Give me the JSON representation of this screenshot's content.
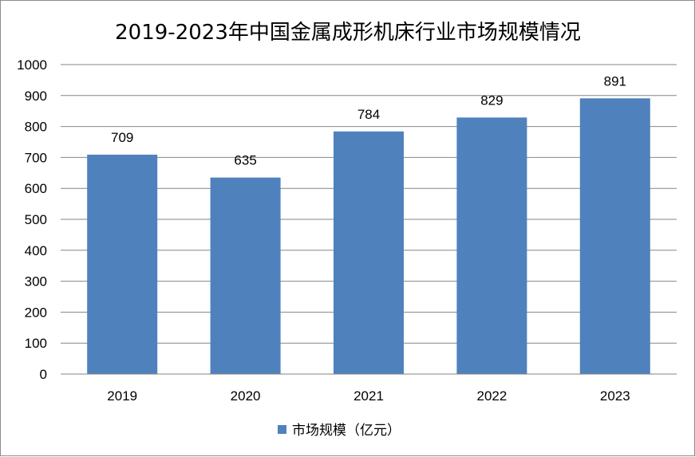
{
  "chart_data": {
    "type": "bar",
    "title": "2019-2023年中国金属成形机床行业市场规模情况",
    "xlabel": "",
    "ylabel": "",
    "categories": [
      "2019",
      "2020",
      "2021",
      "2022",
      "2023"
    ],
    "series": [
      {
        "name": "市场规模（亿元）",
        "values": [
          709,
          635,
          784,
          829,
          891
        ],
        "color": "#4f81bd"
      }
    ],
    "ylim": [
      0,
      1000
    ],
    "yticks": [
      "0",
      "100",
      "200",
      "300",
      "400",
      "500",
      "600",
      "700",
      "800",
      "900",
      "1000"
    ],
    "grid": true,
    "legend_position": "bottom",
    "data_labels": true
  }
}
